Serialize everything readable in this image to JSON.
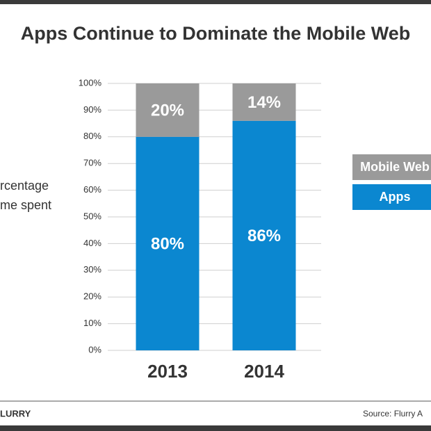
{
  "chart_data": {
    "type": "stacked_bar",
    "title": "Apps Continue to Dominate the Mobile Web",
    "ylabel": [
      "rcentage",
      "me spent"
    ],
    "categories": [
      "2013",
      "2014"
    ],
    "series": [
      {
        "name": "Apps",
        "color": "#0b87d0",
        "values": [
          80,
          86
        ],
        "value_labels": [
          "80%",
          "86%"
        ]
      },
      {
        "name": "Mobile Web",
        "color": "#9a9a9a",
        "values": [
          20,
          14
        ],
        "value_labels": [
          "20%",
          "14%"
        ]
      }
    ],
    "ylim": [
      0,
      100
    ],
    "yticks": [
      {
        "value": 0,
        "label": "0%"
      },
      {
        "value": 10,
        "label": "10%"
      },
      {
        "value": 20,
        "label": "20%"
      },
      {
        "value": 30,
        "label": "30%"
      },
      {
        "value": 40,
        "label": "40%"
      },
      {
        "value": 50,
        "label": "50%"
      },
      {
        "value": 60,
        "label": "60%"
      },
      {
        "value": 70,
        "label": "70%"
      },
      {
        "value": 80,
        "label": "80%"
      },
      {
        "value": 90,
        "label": "90%"
      },
      {
        "value": 100,
        "label": "100%"
      }
    ],
    "grid": true,
    "legend": "right",
    "logo": "LURRY",
    "source": "Source: Flurry A"
  }
}
